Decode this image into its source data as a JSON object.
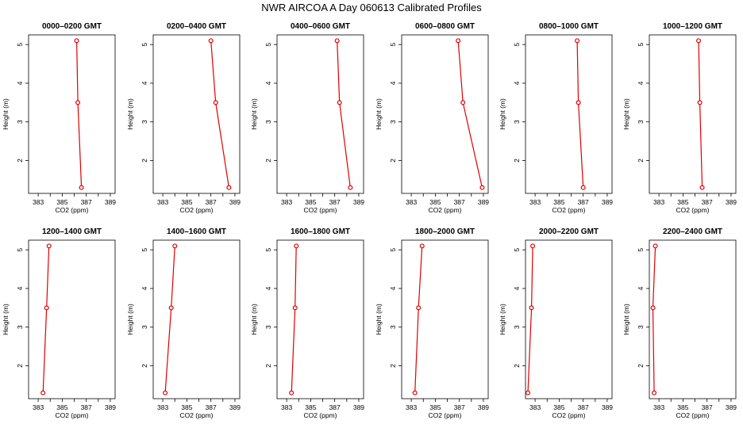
{
  "figure": {
    "title": "NWR AIRCOA A  Day 060613  Calibrated Profiles"
  },
  "chart_data": [
    {
      "type": "line",
      "title": "0000–0200 GMT",
      "xlabel": "CO2 (ppm)",
      "ylabel": "Height (m)",
      "xlim": [
        382.2,
        389.4
      ],
      "ylim": [
        1.15,
        5.25
      ],
      "xticks": [
        "383",
        "385",
        "387",
        "389"
      ],
      "yticks": [
        "2",
        "3",
        "4",
        "5"
      ],
      "x": [
        386.6,
        386.3,
        386.2
      ],
      "y": [
        1.3,
        3.5,
        5.1
      ]
    },
    {
      "type": "line",
      "title": "0200–0400 GMT",
      "xlabel": "CO2 (ppm)",
      "ylabel": "Height (m)",
      "xlim": [
        382.2,
        389.4
      ],
      "ylim": [
        1.15,
        5.25
      ],
      "xticks": [
        "383",
        "385",
        "387",
        "389"
      ],
      "yticks": [
        "2",
        "3",
        "4",
        "5"
      ],
      "x": [
        388.5,
        387.4,
        387.0
      ],
      "y": [
        1.3,
        3.5,
        5.1
      ]
    },
    {
      "type": "line",
      "title": "0400–0600 GMT",
      "xlabel": "CO2 (ppm)",
      "ylabel": "Height (m)",
      "xlim": [
        382.2,
        389.4
      ],
      "ylim": [
        1.15,
        5.25
      ],
      "xticks": [
        "383",
        "385",
        "387",
        "389"
      ],
      "yticks": [
        "2",
        "3",
        "4",
        "5"
      ],
      "x": [
        388.3,
        387.4,
        387.2
      ],
      "y": [
        1.3,
        3.5,
        5.1
      ]
    },
    {
      "type": "line",
      "title": "0600–0800 GMT",
      "xlabel": "CO2 (ppm)",
      "ylabel": "Height (m)",
      "xlim": [
        382.2,
        389.4
      ],
      "ylim": [
        1.15,
        5.25
      ],
      "xticks": [
        "383",
        "385",
        "387",
        "389"
      ],
      "yticks": [
        "2",
        "3",
        "4",
        "5"
      ],
      "x": [
        388.9,
        387.3,
        386.9
      ],
      "y": [
        1.3,
        3.5,
        5.1
      ]
    },
    {
      "type": "line",
      "title": "0800–1000 GMT",
      "xlabel": "CO2 (ppm)",
      "ylabel": "Height (m)",
      "xlim": [
        382.2,
        389.4
      ],
      "ylim": [
        1.15,
        5.25
      ],
      "xticks": [
        "383",
        "385",
        "387",
        "389"
      ],
      "yticks": [
        "2",
        "3",
        "4",
        "5"
      ],
      "x": [
        387.0,
        386.6,
        386.5
      ],
      "y": [
        1.3,
        3.5,
        5.1
      ]
    },
    {
      "type": "line",
      "title": "1000–1200 GMT",
      "xlabel": "CO2 (ppm)",
      "ylabel": "Height (m)",
      "xlim": [
        382.2,
        389.4
      ],
      "ylim": [
        1.15,
        5.25
      ],
      "xticks": [
        "383",
        "385",
        "387",
        "389"
      ],
      "yticks": [
        "2",
        "3",
        "4",
        "5"
      ],
      "x": [
        386.6,
        386.4,
        386.3
      ],
      "y": [
        1.3,
        3.5,
        5.1
      ]
    },
    {
      "type": "line",
      "title": "1200–1400 GMT",
      "xlabel": "CO2 (ppm)",
      "ylabel": "Height (m)",
      "xlim": [
        382.2,
        389.4
      ],
      "ylim": [
        1.15,
        5.25
      ],
      "xticks": [
        "383",
        "385",
        "387",
        "389"
      ],
      "yticks": [
        "2",
        "3",
        "4",
        "5"
      ],
      "x": [
        383.4,
        383.7,
        383.9
      ],
      "y": [
        1.3,
        3.5,
        5.1
      ]
    },
    {
      "type": "line",
      "title": "1400–1600 GMT",
      "xlabel": "CO2 (ppm)",
      "ylabel": "Height (m)",
      "xlim": [
        382.2,
        389.4
      ],
      "ylim": [
        1.15,
        5.25
      ],
      "xticks": [
        "383",
        "385",
        "387",
        "389"
      ],
      "yticks": [
        "2",
        "3",
        "4",
        "5"
      ],
      "x": [
        383.2,
        383.7,
        384.0
      ],
      "y": [
        1.3,
        3.5,
        5.1
      ]
    },
    {
      "type": "line",
      "title": "1600–1800 GMT",
      "xlabel": "CO2 (ppm)",
      "ylabel": "Height (m)",
      "xlim": [
        382.2,
        389.4
      ],
      "ylim": [
        1.15,
        5.25
      ],
      "xticks": [
        "383",
        "385",
        "387",
        "389"
      ],
      "yticks": [
        "2",
        "3",
        "4",
        "5"
      ],
      "x": [
        383.4,
        383.7,
        383.8
      ],
      "y": [
        1.3,
        3.5,
        5.1
      ]
    },
    {
      "type": "line",
      "title": "1800–2000 GMT",
      "xlabel": "CO2 (ppm)",
      "ylabel": "Height (m)",
      "xlim": [
        382.2,
        389.4
      ],
      "ylim": [
        1.15,
        5.25
      ],
      "xticks": [
        "383",
        "385",
        "387",
        "389"
      ],
      "yticks": [
        "2",
        "3",
        "4",
        "5"
      ],
      "x": [
        383.3,
        383.6,
        383.9
      ],
      "y": [
        1.3,
        3.5,
        5.1
      ]
    },
    {
      "type": "line",
      "title": "2000–2200 GMT",
      "xlabel": "CO2 (ppm)",
      "ylabel": "Height (m)",
      "xlim": [
        382.2,
        389.4
      ],
      "ylim": [
        1.15,
        5.25
      ],
      "xticks": [
        "383",
        "385",
        "387",
        "389"
      ],
      "yticks": [
        "2",
        "3",
        "4",
        "5"
      ],
      "x": [
        382.4,
        382.7,
        382.8
      ],
      "y": [
        1.3,
        3.5,
        5.1
      ]
    },
    {
      "type": "line",
      "title": "2200–2400 GMT",
      "xlabel": "CO2 (ppm)",
      "ylabel": "Height (m)",
      "xlim": [
        382.2,
        389.4
      ],
      "ylim": [
        1.15,
        5.25
      ],
      "xticks": [
        "383",
        "385",
        "387",
        "389"
      ],
      "yticks": [
        "2",
        "3",
        "4",
        "5"
      ],
      "x": [
        382.6,
        382.5,
        382.7
      ],
      "y": [
        1.3,
        3.5,
        5.1
      ]
    }
  ],
  "colors": {
    "series": "#e00000",
    "axis": "#000000",
    "background": "#ffffff"
  }
}
